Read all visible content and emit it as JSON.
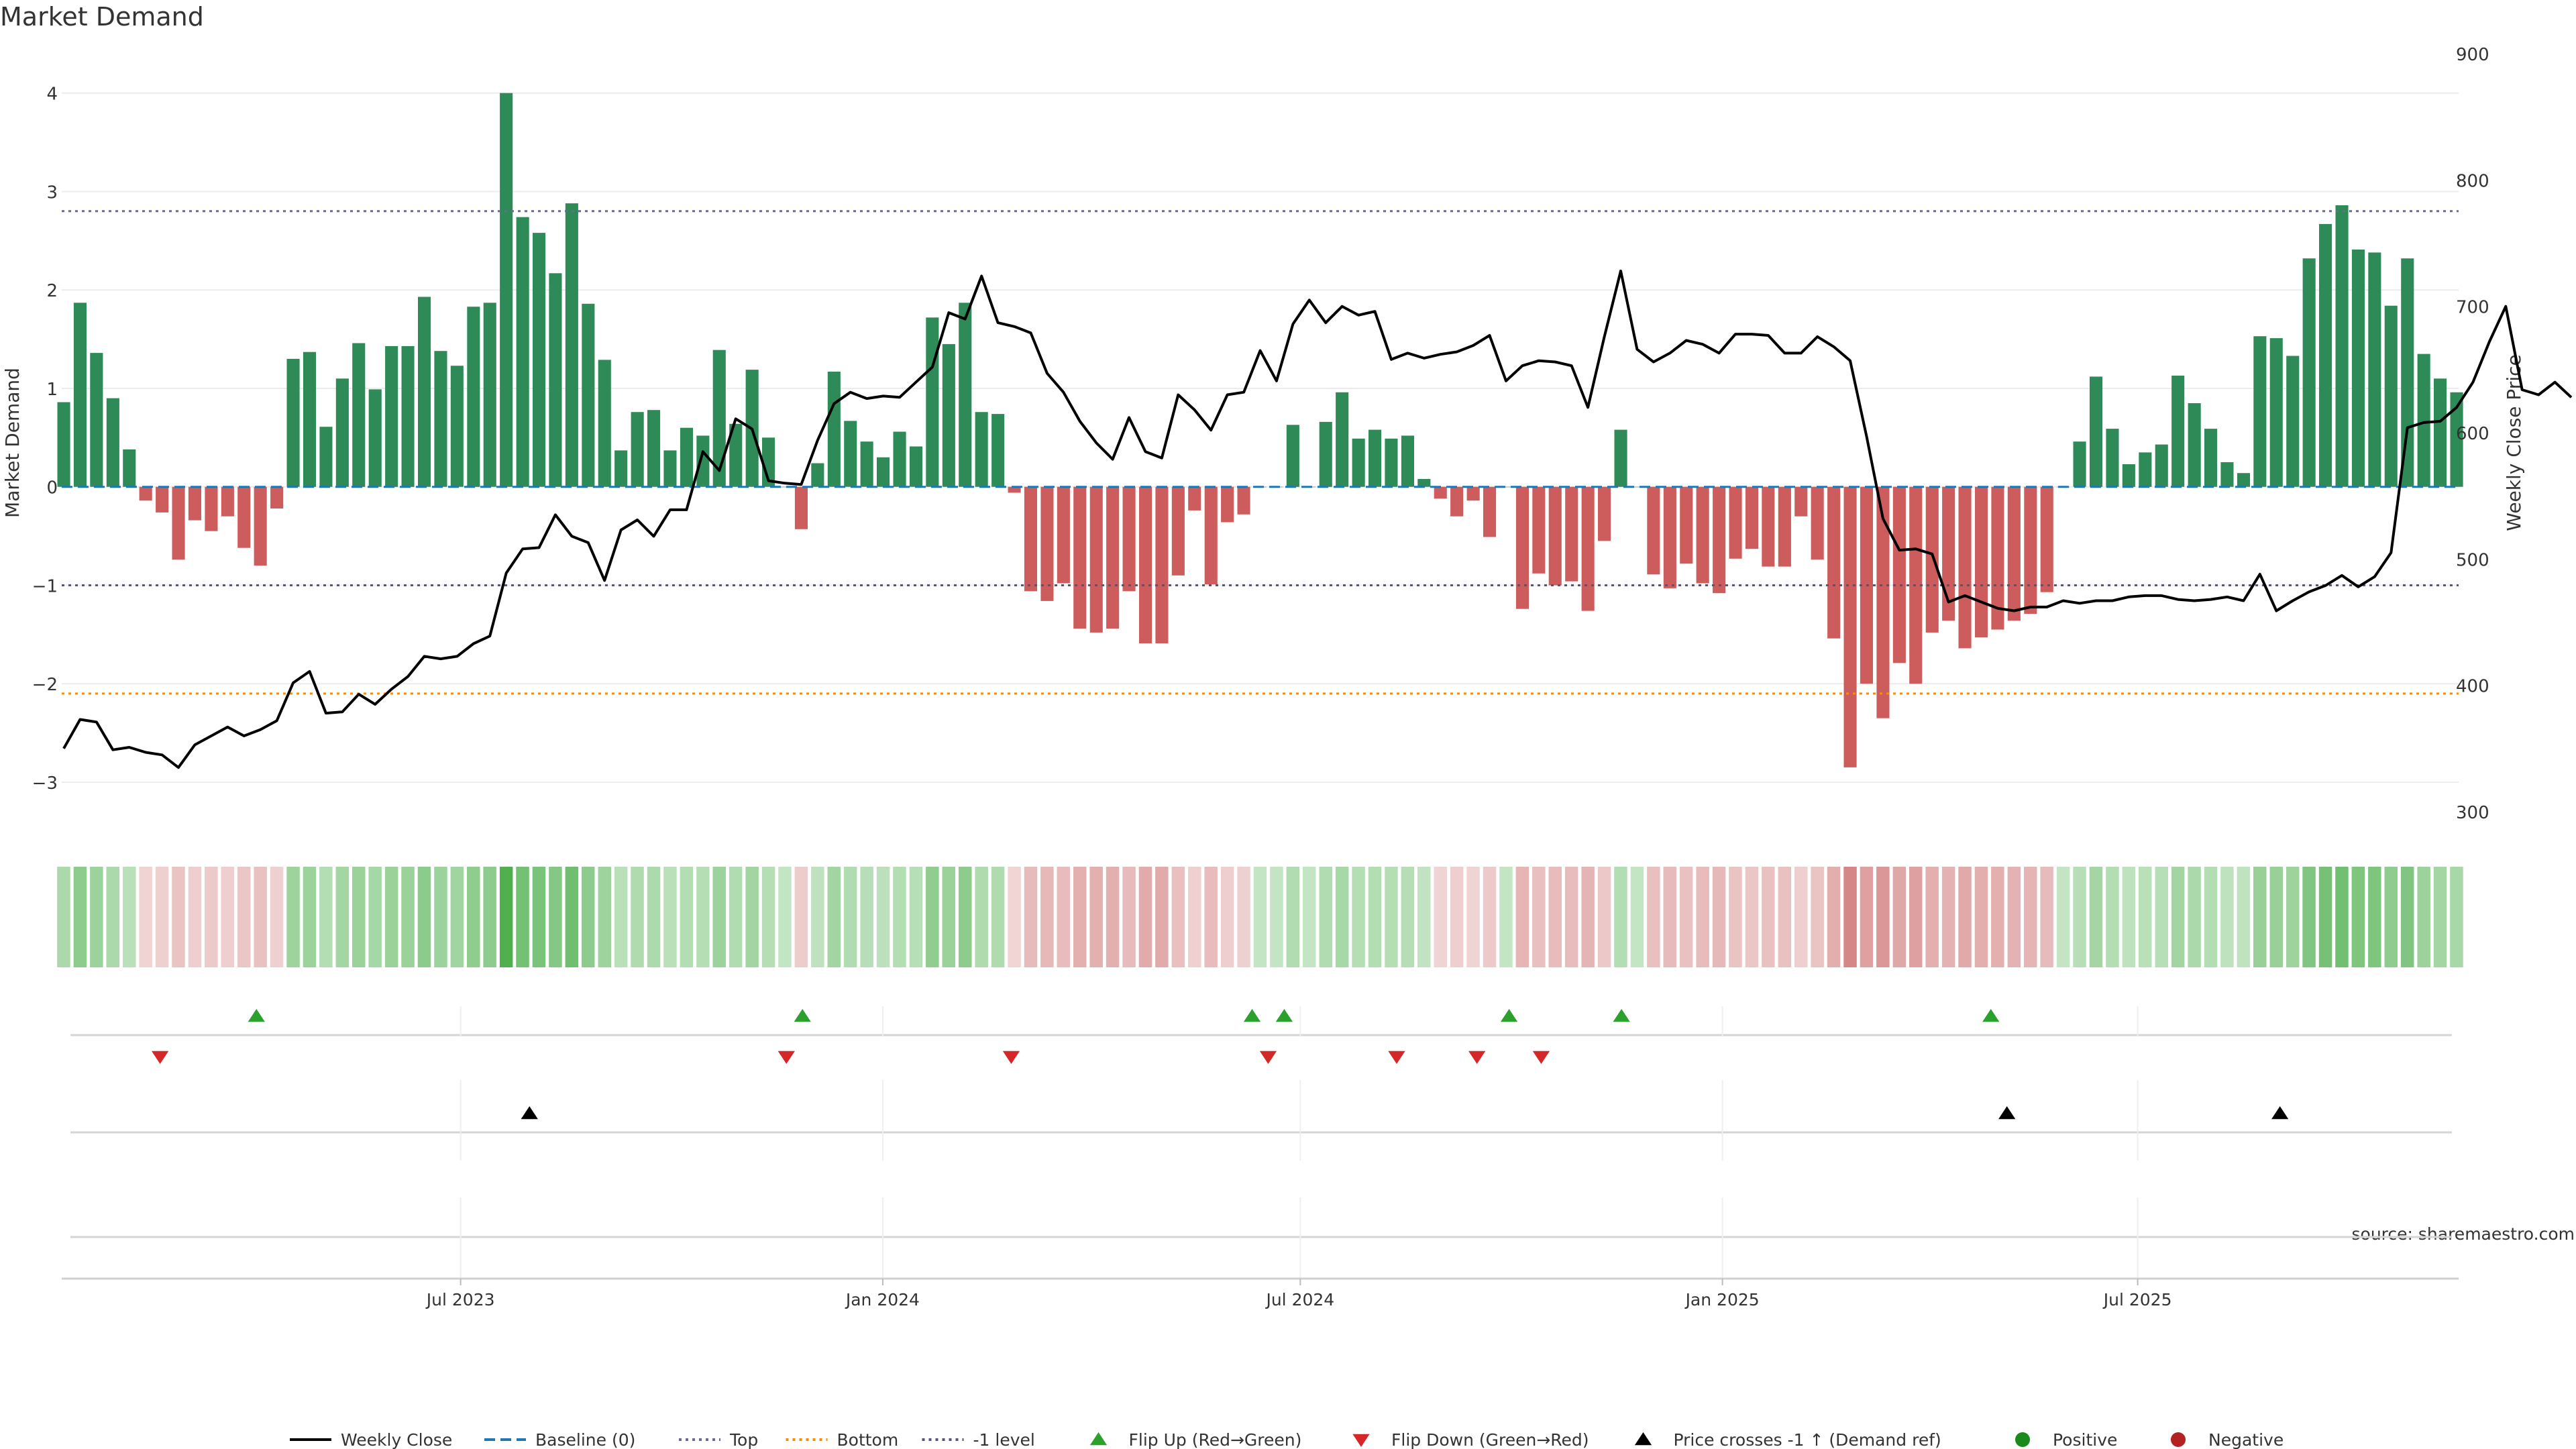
{
  "chart_data": {
    "type": "bar",
    "title": "Market Demand",
    "ylabel_left": "Market Demand",
    "ylabel_right": "Weekly Close Price",
    "source": "source: sharemaestro.com",
    "ylim_left": [
      -3.3,
      4.4
    ],
    "ylim_right": [
      300,
      900
    ],
    "yticks_left": [
      4,
      3,
      2,
      1,
      0,
      -1,
      -2,
      -3
    ],
    "yticks_left_labels": [
      "4",
      "3",
      "2",
      "1",
      "0",
      "−1",
      "−2",
      "−3"
    ],
    "yticks_right": [
      900,
      800,
      700,
      600,
      500,
      400,
      300
    ],
    "x_start": "2023-01-09",
    "x_end": "2025-11-17",
    "xticks": [
      {
        "label": "Jul 2023",
        "date": "2023-07-01"
      },
      {
        "label": "Jan 2024",
        "date": "2024-01-01"
      },
      {
        "label": "Jul 2024",
        "date": "2024-07-01"
      },
      {
        "label": "Jan 2025",
        "date": "2025-01-01"
      },
      {
        "label": "Jul 2025",
        "date": "2025-07-01"
      }
    ],
    "reference_lines": {
      "top": 2.8,
      "bottom": -2.1,
      "minus_one": -1,
      "baseline": 0
    },
    "colors": {
      "positive": "#2e8b57",
      "negative": "#cd5c5c",
      "close": "#000000",
      "baseline": "#1f77b4",
      "top": "#6a6a9a",
      "bottom": "#ff8c00",
      "minus_one": "#55557a",
      "flip_up": "#2ca02c",
      "flip_down": "#d62728"
    },
    "demand": [
      0.86,
      1.87,
      1.36,
      0.9,
      0.38,
      -0.14,
      -0.26,
      -0.74,
      -0.34,
      -0.45,
      -0.3,
      -0.62,
      -0.8,
      -0.22,
      1.3,
      1.37,
      0.61,
      1.1,
      1.46,
      0.99,
      1.43,
      1.43,
      1.93,
      1.38,
      1.23,
      1.83,
      1.87,
      4.0,
      2.74,
      2.58,
      2.17,
      2.88,
      1.86,
      1.29,
      0.37,
      0.76,
      0.78,
      0.37,
      0.6,
      0.52,
      1.39,
      0.64,
      1.19,
      0.5,
      0.0,
      -0.43,
      0.24,
      1.17,
      0.67,
      0.46,
      0.3,
      0.56,
      0.41,
      1.72,
      1.45,
      1.87,
      0.76,
      0.74,
      -0.06,
      -1.06,
      -1.16,
      -0.98,
      -1.44,
      -1.48,
      -1.44,
      -1.06,
      -1.59,
      -1.59,
      -0.9,
      -0.24,
      -0.99,
      -0.36,
      -0.28,
      0.0,
      0.0,
      0.63,
      0.0,
      0.66,
      0.96,
      0.49,
      0.58,
      0.49,
      0.52,
      0.08,
      -0.12,
      -0.3,
      -0.14,
      -0.51,
      0.0,
      -1.24,
      -0.88,
      -1.0,
      -0.96,
      -1.26,
      -0.55,
      0.58,
      0.0,
      -0.89,
      -1.03,
      -0.78,
      -0.98,
      -1.08,
      -0.73,
      -0.63,
      -0.81,
      -0.81,
      -0.3,
      -0.74,
      -1.54,
      -2.85,
      -2.0,
      -2.35,
      -1.79,
      -2.0,
      -1.48,
      -1.36,
      -1.64,
      -1.53,
      -1.45,
      -1.36,
      -1.29,
      -1.07,
      0.0,
      0.46,
      1.12,
      0.59,
      0.23,
      0.35,
      0.43,
      1.13,
      0.85,
      0.59,
      0.25,
      0.14,
      1.53,
      1.51,
      1.33,
      2.32,
      2.67,
      2.86,
      2.41,
      2.38,
      1.84,
      2.32,
      1.35,
      1.1,
      0.96
    ],
    "close": [
      350,
      373,
      371,
      349,
      351,
      347,
      345,
      335,
      353,
      360,
      367,
      360,
      365,
      372,
      402,
      411,
      378,
      379,
      393,
      385,
      397,
      407,
      423,
      421,
      423,
      433,
      439,
      489,
      508,
      509,
      535,
      518,
      513,
      483,
      523,
      531,
      518,
      539,
      539,
      585,
      570,
      611,
      603,
      562,
      560,
      559,
      594,
      623,
      632,
      627,
      629,
      628,
      640,
      652,
      695,
      690,
      724,
      687,
      684,
      679,
      647,
      632,
      609,
      592,
      579,
      612,
      585,
      580,
      630,
      618,
      602,
      630,
      632,
      665,
      641,
      686,
      705,
      687,
      700,
      693,
      696,
      658,
      663,
      659,
      662,
      664,
      669,
      677,
      641,
      653,
      657,
      656,
      653,
      620,
      676,
      728,
      666,
      656,
      663,
      673,
      670,
      663,
      678,
      678,
      677,
      663,
      663,
      676,
      668,
      657,
      597,
      532,
      507,
      508,
      504,
      466,
      471,
      466,
      461,
      459,
      462,
      462,
      467,
      465,
      467,
      467,
      470,
      471,
      471,
      468,
      467,
      468,
      470,
      467,
      488,
      459,
      467,
      474,
      479,
      487,
      478,
      486,
      505,
      604,
      608,
      609,
      620,
      640,
      672,
      700,
      634,
      630,
      640,
      628
    ]
  },
  "flip_up_dates": [
    "2023-04-03",
    "2023-11-27",
    "2024-06-10",
    "2024-06-24",
    "2024-09-30",
    "2024-11-18",
    "2025-04-28"
  ],
  "flip_down_dates": [
    "2023-02-20",
    "2023-11-20",
    "2024-02-26",
    "2024-06-17",
    "2024-08-12",
    "2024-09-16",
    "2024-10-14"
  ],
  "price_cross_dates": [
    "2023-07-31",
    "2025-05-05",
    "2025-09-01"
  ],
  "legend": [
    {
      "label": "Weekly Close",
      "kind": "line",
      "color": "#000000"
    },
    {
      "label": "Baseline (0)",
      "kind": "dash",
      "color": "#1f77b4"
    },
    {
      "label": "Top",
      "kind": "dot",
      "color": "#6a6a9a"
    },
    {
      "label": "Bottom",
      "kind": "dot",
      "color": "#ff8c00"
    },
    {
      "label": "-1 level",
      "kind": "dot",
      "color": "#55557a"
    },
    {
      "label": "Flip Up (Red→Green)",
      "kind": "tri-up",
      "color": "#2ca02c"
    },
    {
      "label": "Flip Down (Green→Red)",
      "kind": "tri-down",
      "color": "#d62728"
    },
    {
      "label": "Price crosses -1 ↑ (Demand ref)",
      "kind": "tri-up",
      "color": "#000000"
    },
    {
      "label": "Positive",
      "kind": "circle",
      "color": "#1a8a1a"
    },
    {
      "label": "Negative",
      "kind": "circle",
      "color": "#b22222"
    }
  ]
}
